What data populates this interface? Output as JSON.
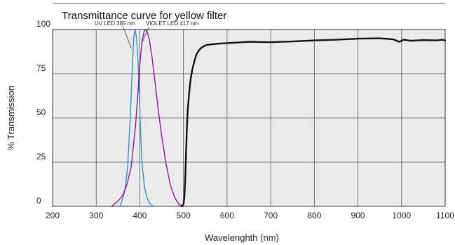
{
  "chart_data": {
    "type": "line",
    "title": "Transmittance curve for yellow filter",
    "xlabel": "Wavelenghth (nm)",
    "ylabel": "% Transmission",
    "xlim": [
      200,
      1100
    ],
    "ylim": [
      0,
      100
    ],
    "xticks": [
      200,
      300,
      400,
      500,
      600,
      700,
      800,
      900,
      1000,
      1100
    ],
    "yticks": [
      0,
      25,
      50,
      75,
      100
    ],
    "grid": true,
    "annotations": [
      {
        "text": "UV LED 385 nm"
      },
      {
        "text": "VIOLET LED 417 nm"
      }
    ],
    "series": [
      {
        "color": "#3a8fc8",
        "x": [
          355,
          365,
          372,
          378,
          383,
          386,
          389,
          392,
          396,
          400,
          404,
          410,
          416,
          422,
          428,
          432
        ],
        "y": [
          0,
          8,
          22,
          50,
          80,
          95,
          100,
          96,
          82,
          55,
          28,
          12,
          5,
          2,
          0.5,
          0
        ]
      },
      {
        "color": "#8b1a9c",
        "x": [
          335,
          350,
          360,
          370,
          380,
          390,
          395,
          400,
          405,
          410,
          414,
          418,
          422,
          428,
          435,
          442,
          450,
          460,
          470,
          480,
          490,
          500
        ],
        "y": [
          0,
          3,
          6,
          12,
          22,
          45,
          62,
          80,
          93,
          99,
          100,
          98,
          94,
          84,
          70,
          55,
          40,
          24,
          12,
          5,
          1,
          0
        ]
      },
      {
        "color": "#111111",
        "x": [
          495,
          500,
          502,
          504,
          506,
          508,
          510,
          513,
          516,
          520,
          525,
          530,
          535,
          540,
          550,
          560,
          580,
          600,
          650,
          700,
          750,
          800,
          850,
          900,
          950,
          980,
          995,
          1005,
          1020,
          1050,
          1080,
          1095,
          1100
        ],
        "y": [
          0,
          1,
          5,
          15,
          30,
          45,
          55,
          64,
          71,
          77,
          82,
          86,
          88,
          89.5,
          91,
          91.5,
          92,
          92.3,
          93,
          92.8,
          93.2,
          93.8,
          94.2,
          94.8,
          95,
          94.5,
          93,
          94.3,
          93.6,
          94,
          93.8,
          94.2,
          93.7
        ]
      }
    ]
  }
}
